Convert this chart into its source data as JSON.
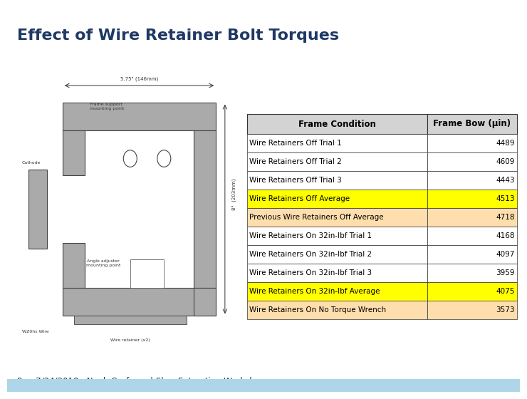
{
  "title": "Effect of Wire Retainer Bolt Torques",
  "title_color": "#1F3864",
  "title_fontsize": 16,
  "bg_color": "#FFFFFF",
  "footer_bar_color": "#AED6E8",
  "footer_text": "8     7/24/2019   Noah Curfman | Slow Extraction Workshop",
  "footer_fontsize": 8.5,
  "table_header": [
    "Frame Condition",
    "Frame Bow (μin)"
  ],
  "table_rows": [
    [
      "Wire Retainers Off Trial 1",
      "4489"
    ],
    [
      "Wire Retainers Off Trial 2",
      "4609"
    ],
    [
      "Wire Retainers Off Trial 3",
      "4443"
    ],
    [
      "Wire Retainers Off Average",
      "4513"
    ],
    [
      "Previous Wire Retainers Off Average",
      "4718"
    ],
    [
      "Wire Retainers On 32in-lbf Trial 1",
      "4168"
    ],
    [
      "Wire Retainers On 32in-lbf Trial 2",
      "4097"
    ],
    [
      "Wire Retainers On 32in-lbf Trial 3",
      "3959"
    ],
    [
      "Wire Retainers On 32in-lbf Average",
      "4075"
    ],
    [
      "Wire Retainers On No Torque Wrench",
      "3573"
    ]
  ],
  "row_colors": [
    [
      "#FFFFFF",
      "#FFFFFF"
    ],
    [
      "#FFFFFF",
      "#FFFFFF"
    ],
    [
      "#FFFFFF",
      "#FFFFFF"
    ],
    [
      "#FFFF00",
      "#FFFF00"
    ],
    [
      "#FFDEAD",
      "#FFDEAD"
    ],
    [
      "#FFFFFF",
      "#FFFFFF"
    ],
    [
      "#FFFFFF",
      "#FFFFFF"
    ],
    [
      "#FFFFFF",
      "#FFFFFF"
    ],
    [
      "#FFFF00",
      "#FFFF00"
    ],
    [
      "#FFDEAD",
      "#FFDEAD"
    ]
  ],
  "header_bg": "#D3D3D3",
  "frame_color": "#AAAAAA",
  "frame_edge": "#444444"
}
